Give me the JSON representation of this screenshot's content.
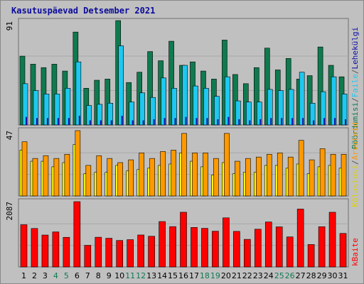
{
  "chart_data": {
    "type": "bar",
    "title": "Kasutuspäevad Detsember 2021",
    "categories": [
      "1",
      "2",
      "3",
      "4",
      "5",
      "6",
      "7",
      "8",
      "9",
      "10",
      "11",
      "12",
      "13",
      "14",
      "15",
      "16",
      "17",
      "18",
      "19",
      "20",
      "21",
      "22",
      "23",
      "24",
      "25",
      "26",
      "27",
      "28",
      "29",
      "30",
      "31"
    ],
    "weekend_days": [
      "4",
      "5",
      "11",
      "12",
      "18",
      "19",
      "25",
      "26"
    ],
    "panels": [
      {
        "id": "hits",
        "ymax_label": "91",
        "ylim": [
          0,
          91
        ],
        "series": [
          {
            "name": "Pöördumisi",
            "color": "#0f7a4f",
            "values": [
              60,
              53,
              50,
              53,
              47,
              81,
              32,
              39,
              40,
              91,
              37,
              46,
              64,
              56,
              73,
              52,
              55,
              47,
              40,
              74,
              44,
              36,
              50,
              67,
              48,
              58,
              40,
              43,
              68,
              52,
              42
            ]
          },
          {
            "name": "Faile",
            "color": "#1ec8f0",
            "values": [
              36,
              30,
              27,
              27,
              32,
              55,
              17,
              18,
              19,
              69,
              20,
              28,
              24,
              41,
              32,
              52,
              34,
              32,
              25,
              42,
              21,
              20,
              20,
              31,
              30,
              31,
              46,
              19,
              29,
              42,
              27
            ]
          },
          {
            "name": "Lehekülgi",
            "color": "#1010a8",
            "values": [
              7,
              6,
              6,
              6,
              6,
              8,
              4,
              4,
              4,
              8,
              4,
              4,
              5,
              6,
              6,
              7,
              6,
              6,
              5,
              7,
              5,
              4,
              5,
              6,
              6,
              6,
              6,
              4,
              6,
              6,
              5
            ]
          }
        ]
      },
      {
        "id": "visits",
        "ymax_label": "47",
        "ylim": [
          0,
          47
        ],
        "series": [
          {
            "name": "Külastusi",
            "color": "#ffff00",
            "values": [
              33,
              25,
              25,
              21,
              24,
              37,
              16,
              17,
              17,
              22,
              18,
              19,
              20,
              22,
              23,
              31,
              25,
              21,
              15,
              24,
              16,
              17,
              17,
              22,
              22,
              20,
              23,
              16,
              21,
              22,
              20
            ]
          },
          {
            "name": "Arvuteid",
            "color": "#ff9900",
            "values": [
              39,
              27,
              29,
              27,
              30,
              47,
              22,
              29,
              27,
              24,
              26,
              31,
              27,
              32,
              33,
              45,
              31,
              31,
              27,
              45,
              25,
              27,
              28,
              30,
              31,
              28,
              40,
              26,
              34,
              30,
              30
            ]
          }
        ]
      },
      {
        "id": "kbytes",
        "ymax_label": "2087",
        "ylim": [
          0,
          2087
        ],
        "series": [
          {
            "name": "kBaite",
            "color": "#ff0000",
            "values": [
              1350,
              1230,
              1020,
              1120,
              947,
              2087,
              692,
              950,
              917,
              847,
              873,
              1022,
              981,
              1451,
              1289,
              1748,
              1263,
              1235,
              1143,
              1570,
              1137,
              882,
              1206,
              1438,
              1281,
              960,
              1850,
              718,
              1286,
              1748,
              1072
            ]
          }
        ]
      }
    ],
    "ylabels": {
      "top": [
        {
          "text": "Pöördumisi",
          "color": "#0f7a4f"
        },
        {
          "text": "/",
          "color": "#555555"
        },
        {
          "text": "Faile",
          "color": "#1ec8f0"
        },
        {
          "text": "/",
          "color": "#555555"
        },
        {
          "text": "Lehekülgi",
          "color": "#1010a8"
        }
      ],
      "middle": [
        {
          "text": "Külastusi",
          "color": "#e0d000"
        },
        {
          "text": "/",
          "color": "#555555"
        },
        {
          "text": "Arvuteid",
          "color": "#ff9900"
        }
      ],
      "bottom": [
        {
          "text": "kBaite",
          "color": "#ff0000"
        }
      ]
    },
    "colors": {
      "background": "#c0c0c0",
      "plot_background": "#c0c0c0",
      "gridline": "#a8a8a8",
      "weekday_tick": "#000000",
      "weekend_tick": "#0f7a4f"
    },
    "grid": true
  }
}
